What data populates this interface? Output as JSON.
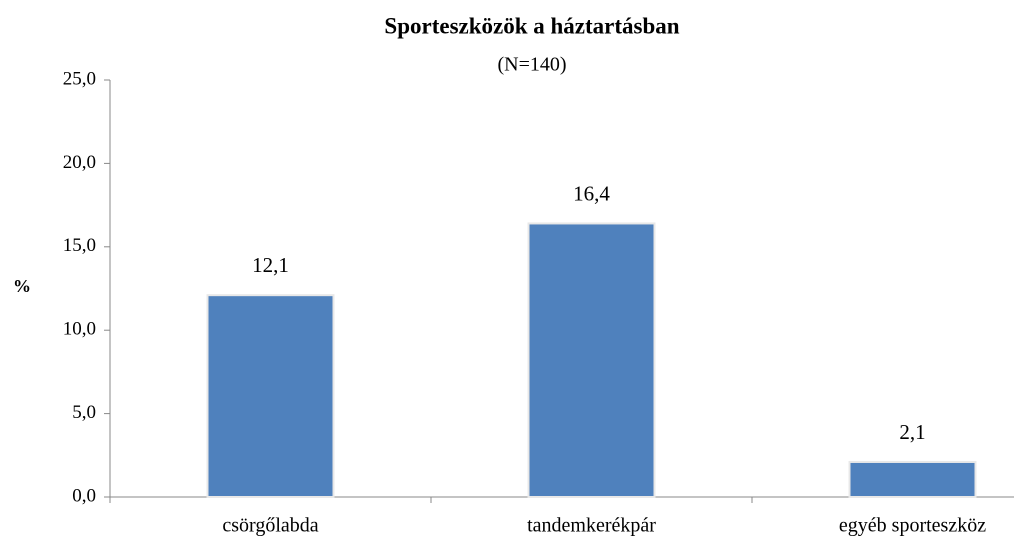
{
  "chart_data": {
    "type": "bar",
    "title": "Sporteszközök a háztartásban",
    "subtitle": "(N=140)",
    "y_label": "%",
    "categories": [
      "csörgőlabda",
      "tandemkerékpár",
      "egyéb sporteszköz"
    ],
    "values": [
      12.1,
      16.4,
      2.1
    ],
    "value_labels": [
      "12,1",
      "16,4",
      "2,1"
    ],
    "color": "#4f81bd",
    "ylim": [
      0,
      25
    ],
    "yticks": [
      {
        "value": 0,
        "label": "0,0"
      },
      {
        "value": 5,
        "label": "5,0"
      },
      {
        "value": 10,
        "label": "10,0"
      },
      {
        "value": 15,
        "label": "15,0"
      },
      {
        "value": 20,
        "label": "20,0"
      },
      {
        "value": 25,
        "label": "25,0"
      }
    ],
    "grid": false
  }
}
